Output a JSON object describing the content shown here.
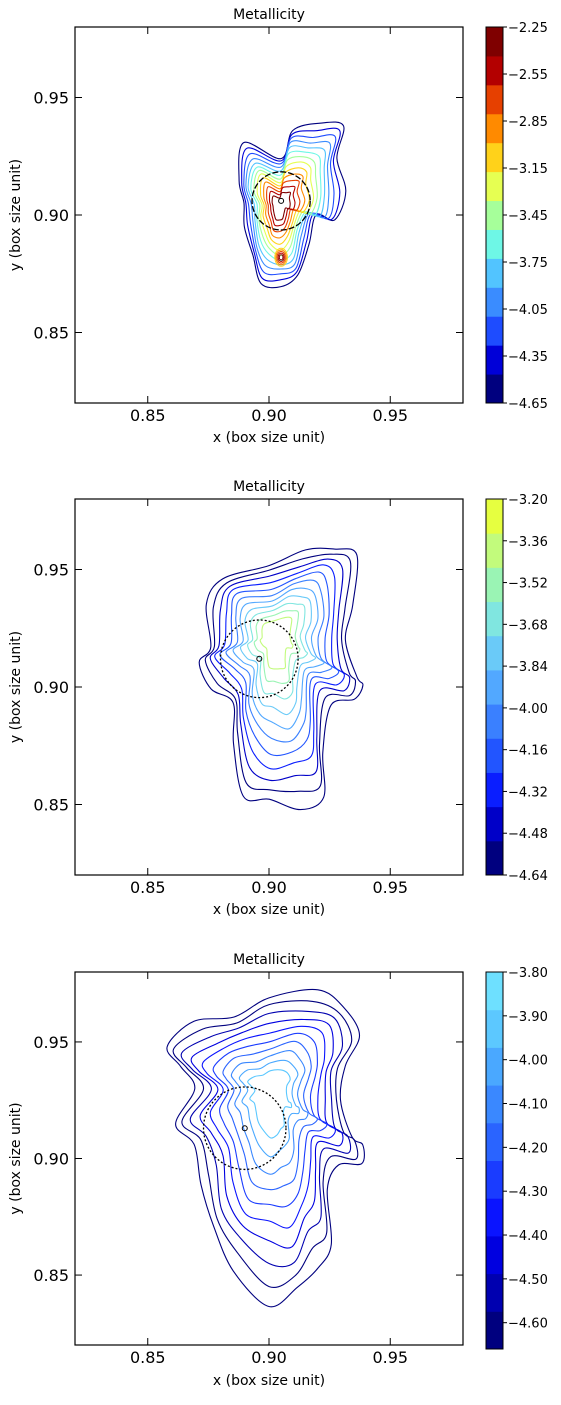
{
  "chart_data": [
    {
      "type": "contour",
      "title": "Metallicity",
      "xlabel": "x (box size unit)",
      "ylabel": "y (box size unit)",
      "xlim": [
        0.82,
        0.98
      ],
      "ylim": [
        0.82,
        0.98
      ],
      "xticks": [
        "0.85",
        "0.90",
        "0.95"
      ],
      "yticks": [
        "0.85",
        "0.90",
        "0.95"
      ],
      "colorbar": {
        "ticks": [
          "−2.25",
          "−2.55",
          "−2.85",
          "−3.15",
          "−3.45",
          "−3.75",
          "−4.05",
          "−4.35",
          "−4.65"
        ],
        "vmin": -4.65,
        "vmax": -2.25,
        "colors": [
          "#00007f",
          "#0000d8",
          "#1e4cff",
          "#3a8cff",
          "#52c4ff",
          "#6ef7e6",
          "#a6ff9a",
          "#e6ff52",
          "#ffd21a",
          "#ff8a00",
          "#e64000",
          "#b30000",
          "#7f0000"
        ]
      },
      "halo_center": [
        0.905,
        0.906
      ],
      "halo_radius": 0.012
    },
    {
      "type": "contour",
      "title": "Metallicity",
      "xlabel": "x (box size unit)",
      "ylabel": "y (box size unit)",
      "xlim": [
        0.82,
        0.98
      ],
      "ylim": [
        0.82,
        0.98
      ],
      "xticks": [
        "0.85",
        "0.90",
        "0.95"
      ],
      "yticks": [
        "0.85",
        "0.90",
        "0.95"
      ],
      "colorbar": {
        "ticks": [
          "−3.20",
          "−3.36",
          "−3.52",
          "−3.68",
          "−3.84",
          "−4.00",
          "−4.16",
          "−4.32",
          "−4.48",
          "−4.64"
        ],
        "vmin": -4.64,
        "vmax": -3.2,
        "colors": [
          "#00007f",
          "#0000c8",
          "#0a1eff",
          "#2255ff",
          "#3a80ff",
          "#52a8ff",
          "#6acaf8",
          "#80e6e0",
          "#9af4b4",
          "#c2fb7c",
          "#e6ff40"
        ]
      },
      "halo_center": [
        0.896,
        0.912
      ],
      "halo_radius": 0.016
    },
    {
      "type": "contour",
      "title": "Metallicity",
      "xlabel": "x (box size unit)",
      "ylabel": "y (box size unit)",
      "xlim": [
        0.82,
        0.98
      ],
      "ylim": [
        0.82,
        0.98
      ],
      "xticks": [
        "0.85",
        "0.90",
        "0.95"
      ],
      "yticks": [
        "0.85",
        "0.90",
        "0.95"
      ],
      "colorbar": {
        "ticks": [
          "−3.80",
          "−3.90",
          "−4.00",
          "−4.10",
          "−4.20",
          "−4.30",
          "−4.40",
          "−4.50",
          "−4.60"
        ],
        "vmin": -4.66,
        "vmax": -3.8,
        "colors": [
          "#00007f",
          "#0000b0",
          "#0000e0",
          "#0a14ff",
          "#1a3cff",
          "#2a64ff",
          "#3a88ff",
          "#4aa8ff",
          "#5cc8ff",
          "#6ee0ff"
        ]
      },
      "halo_center": [
        0.89,
        0.913
      ],
      "halo_radius": 0.017
    }
  ]
}
